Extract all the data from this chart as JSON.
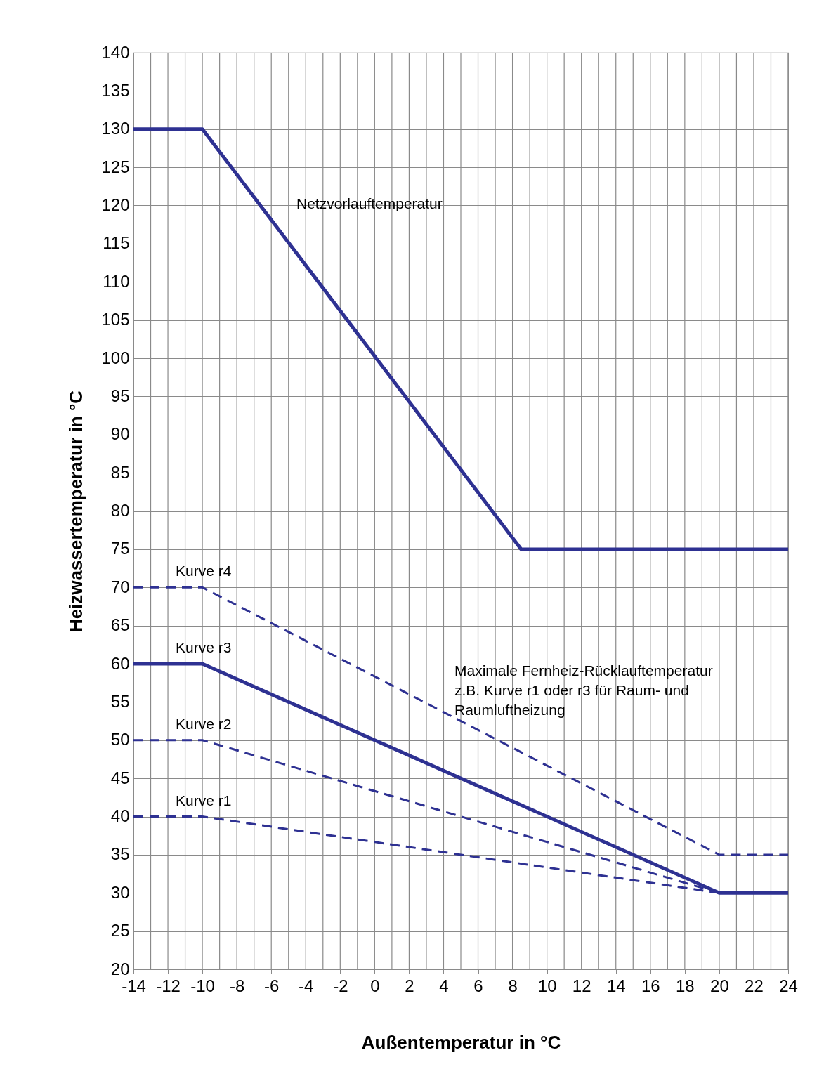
{
  "chart_data": {
    "type": "line",
    "xlabel": "Außentemperatur in °C",
    "ylabel": "Heizwassertemperatur in °C",
    "xlim": [
      -14,
      24
    ],
    "xticks": [
      -14,
      {
        "value": -13,
        "label": null
      },
      -12,
      {
        "value": -11,
        "label": null
      },
      -10,
      {
        "value": -9,
        "label": null
      },
      -8,
      {
        "value": -7,
        "label": null
      },
      -6,
      {
        "value": -5,
        "label": null
      },
      -4,
      {
        "value": -3,
        "label": null
      },
      -2,
      {
        "value": -1,
        "label": null
      },
      0,
      {
        "value": 1,
        "label": null
      },
      2,
      {
        "value": 3,
        "label": null
      },
      4,
      {
        "value": 5,
        "label": null
      },
      6,
      {
        "value": 7,
        "label": null
      },
      8,
      {
        "value": 9,
        "label": null
      },
      10,
      {
        "value": 11,
        "label": null
      },
      12,
      {
        "value": 13,
        "label": null
      },
      14,
      {
        "value": 15,
        "label": null
      },
      16,
      {
        "value": 17,
        "label": null
      },
      18,
      {
        "value": 19,
        "label": null
      },
      20,
      {
        "value": 21,
        "label": null
      },
      22,
      {
        "value": 23,
        "label": null
      },
      24
    ],
    "ylim": [
      20,
      140
    ],
    "yticks": [
      20,
      25,
      30,
      35,
      40,
      45,
      50,
      55,
      60,
      65,
      70,
      75,
      80,
      85,
      90,
      95,
      100,
      105,
      110,
      115,
      120,
      125,
      130,
      135,
      140
    ],
    "grid": true,
    "series": [
      {
        "name": "Netzvorlauftemperatur",
        "color": "#2e3192",
        "line_style": "solid",
        "x": [
          -14,
          -10,
          8.5,
          24
        ],
        "values": [
          130,
          130,
          75,
          75
        ]
      },
      {
        "name": "Kurve r4",
        "color": "#2e3192",
        "line_style": "dashed",
        "x": [
          -14,
          -10,
          20,
          24
        ],
        "values": [
          70,
          70,
          35,
          35
        ]
      },
      {
        "name": "Kurve r3",
        "color": "#2e3192",
        "line_style": "solid",
        "x": [
          -14,
          -10,
          20,
          24
        ],
        "values": [
          60,
          60,
          30,
          30
        ]
      },
      {
        "name": "Kurve r2",
        "color": "#2e3192",
        "line_style": "dashed",
        "x": [
          -14,
          -10,
          20
        ],
        "values": [
          50,
          50,
          30
        ]
      },
      {
        "name": "Kurve r1",
        "color": "#2e3192",
        "line_style": "dashed",
        "x": [
          -14,
          -10,
          20
        ],
        "values": [
          40,
          40,
          30
        ]
      }
    ],
    "annotations": [
      "Maximale Fernheiz-Rücklauftemperatur\nz.B. Kurve r1 oder r3 für Raum- und\nRaumluftheizung"
    ]
  }
}
